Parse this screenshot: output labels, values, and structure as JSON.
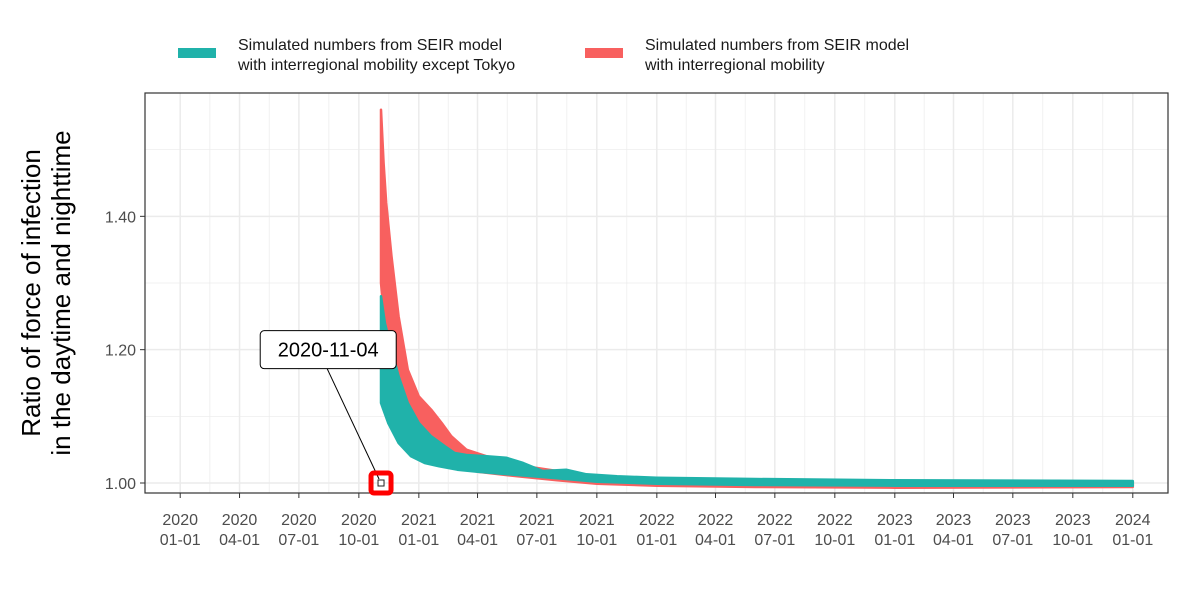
{
  "chart_data": {
    "type": "line",
    "ylabel": "Ratio of force of infection\nin the daytime and nighttime",
    "xlabel": "",
    "xlim": [
      "2019-11-08",
      "2024-02-24"
    ],
    "ylim": [
      0.985,
      1.585
    ],
    "y_ticks": [
      1.0,
      1.2,
      1.4
    ],
    "y_tick_labels": [
      "1.00",
      "1.20",
      "1.40"
    ],
    "x_ticks": [
      "2020-01-01",
      "2020-04-01",
      "2020-07-01",
      "2020-10-01",
      "2021-01-01",
      "2021-04-01",
      "2021-07-01",
      "2021-10-01",
      "2022-01-01",
      "2022-04-01",
      "2022-07-01",
      "2022-10-01",
      "2023-01-01",
      "2023-04-01",
      "2023-07-01",
      "2023-10-01",
      "2024-01-01"
    ],
    "x_tick_labels": [
      "2020\n01-01",
      "2020\n04-01",
      "2020\n07-01",
      "2020\n10-01",
      "2021\n01-01",
      "2021\n04-01",
      "2021\n07-01",
      "2021\n10-01",
      "2022\n01-01",
      "2022\n04-01",
      "2022\n07-01",
      "2022\n10-01",
      "2023\n01-01",
      "2023\n04-01",
      "2023\n07-01",
      "2023\n10-01",
      "2024\n01-01"
    ],
    "grid": true,
    "legend_position": "top",
    "series": [
      {
        "name": "Simulated numbers from SEIR model\nwith interregional mobility except Tokyo",
        "color": "#20B2AA",
        "upper": [
          [
            "2020-11-04",
            1.28
          ],
          [
            "2020-11-10",
            1.24
          ],
          [
            "2020-11-20",
            1.2
          ],
          [
            "2020-12-01",
            1.16
          ],
          [
            "2020-12-15",
            1.12
          ],
          [
            "2021-01-01",
            1.09
          ],
          [
            "2021-01-20",
            1.07
          ],
          [
            "2021-02-10",
            1.055
          ],
          [
            "2021-02-25",
            1.045
          ],
          [
            "2021-03-15",
            1.042
          ],
          [
            "2021-04-15",
            1.04
          ],
          [
            "2021-05-15",
            1.038
          ],
          [
            "2021-06-10",
            1.03
          ],
          [
            "2021-07-10",
            1.018
          ],
          [
            "2021-08-15",
            1.02
          ],
          [
            "2021-09-15",
            1.013
          ],
          [
            "2021-11-01",
            1.01
          ],
          [
            "2022-01-01",
            1.008
          ],
          [
            "2022-06-01",
            1.006
          ],
          [
            "2023-01-01",
            1.004
          ],
          [
            "2024-01-01",
            1.003
          ]
        ],
        "lower": [
          [
            "2020-11-04",
            1.12
          ],
          [
            "2020-11-15",
            1.09
          ],
          [
            "2020-12-01",
            1.06
          ],
          [
            "2020-12-20",
            1.04
          ],
          [
            "2021-01-10",
            1.03
          ],
          [
            "2021-02-01",
            1.025
          ],
          [
            "2021-03-01",
            1.02
          ],
          [
            "2021-04-01",
            1.017
          ],
          [
            "2021-06-01",
            1.012
          ],
          [
            "2021-08-01",
            1.007
          ],
          [
            "2021-10-01",
            1.002
          ],
          [
            "2022-01-01",
            0.999
          ],
          [
            "2022-06-01",
            0.997
          ],
          [
            "2023-01-01",
            0.996
          ],
          [
            "2024-01-01",
            0.996
          ]
        ]
      },
      {
        "name": "Simulated numbers from SEIR model\nwith interregional mobility",
        "color": "#F8605F",
        "upper": [
          [
            "2020-11-04",
            1.56
          ],
          [
            "2020-11-08",
            1.48
          ],
          [
            "2020-11-12",
            1.42
          ],
          [
            "2020-11-20",
            1.34
          ],
          [
            "2020-12-01",
            1.25
          ],
          [
            "2020-12-15",
            1.17
          ],
          [
            "2021-01-01",
            1.13
          ],
          [
            "2021-01-20",
            1.11
          ],
          [
            "2021-02-05",
            1.09
          ],
          [
            "2021-02-20",
            1.07
          ],
          [
            "2021-03-15",
            1.05
          ],
          [
            "2021-04-15",
            1.04
          ],
          [
            "2021-05-15",
            1.035
          ],
          [
            "2021-06-15",
            1.025
          ],
          [
            "2021-08-01",
            1.018
          ],
          [
            "2021-10-01",
            1.01
          ],
          [
            "2022-01-01",
            1.007
          ],
          [
            "2022-06-01",
            1.005
          ],
          [
            "2023-01-01",
            1.003
          ],
          [
            "2024-01-01",
            1.002
          ]
        ],
        "lower": [
          [
            "2020-11-04",
            1.3
          ],
          [
            "2020-11-15",
            1.18
          ],
          [
            "2020-12-01",
            1.1
          ],
          [
            "2020-12-20",
            1.06
          ],
          [
            "2021-01-10",
            1.04
          ],
          [
            "2021-02-01",
            1.03
          ],
          [
            "2021-03-01",
            1.022
          ],
          [
            "2021-04-01",
            1.017
          ],
          [
            "2021-06-01",
            1.01
          ],
          [
            "2021-08-01",
            1.004
          ],
          [
            "2021-10-01",
            0.999
          ],
          [
            "2022-01-01",
            0.996
          ],
          [
            "2022-06-01",
            0.994
          ],
          [
            "2023-01-01",
            0.993
          ],
          [
            "2024-01-01",
            0.994
          ]
        ]
      }
    ],
    "annotations": [
      {
        "text": "2020-11-04",
        "date": "2020-11-04",
        "value": 1.0,
        "label_anchor_date": "2020-08-15",
        "label_anchor_value": 1.2
      }
    ],
    "colors": {
      "panel_border": "#333333",
      "grid": "#EBEBEB",
      "highlight": "#FF0000"
    }
  }
}
